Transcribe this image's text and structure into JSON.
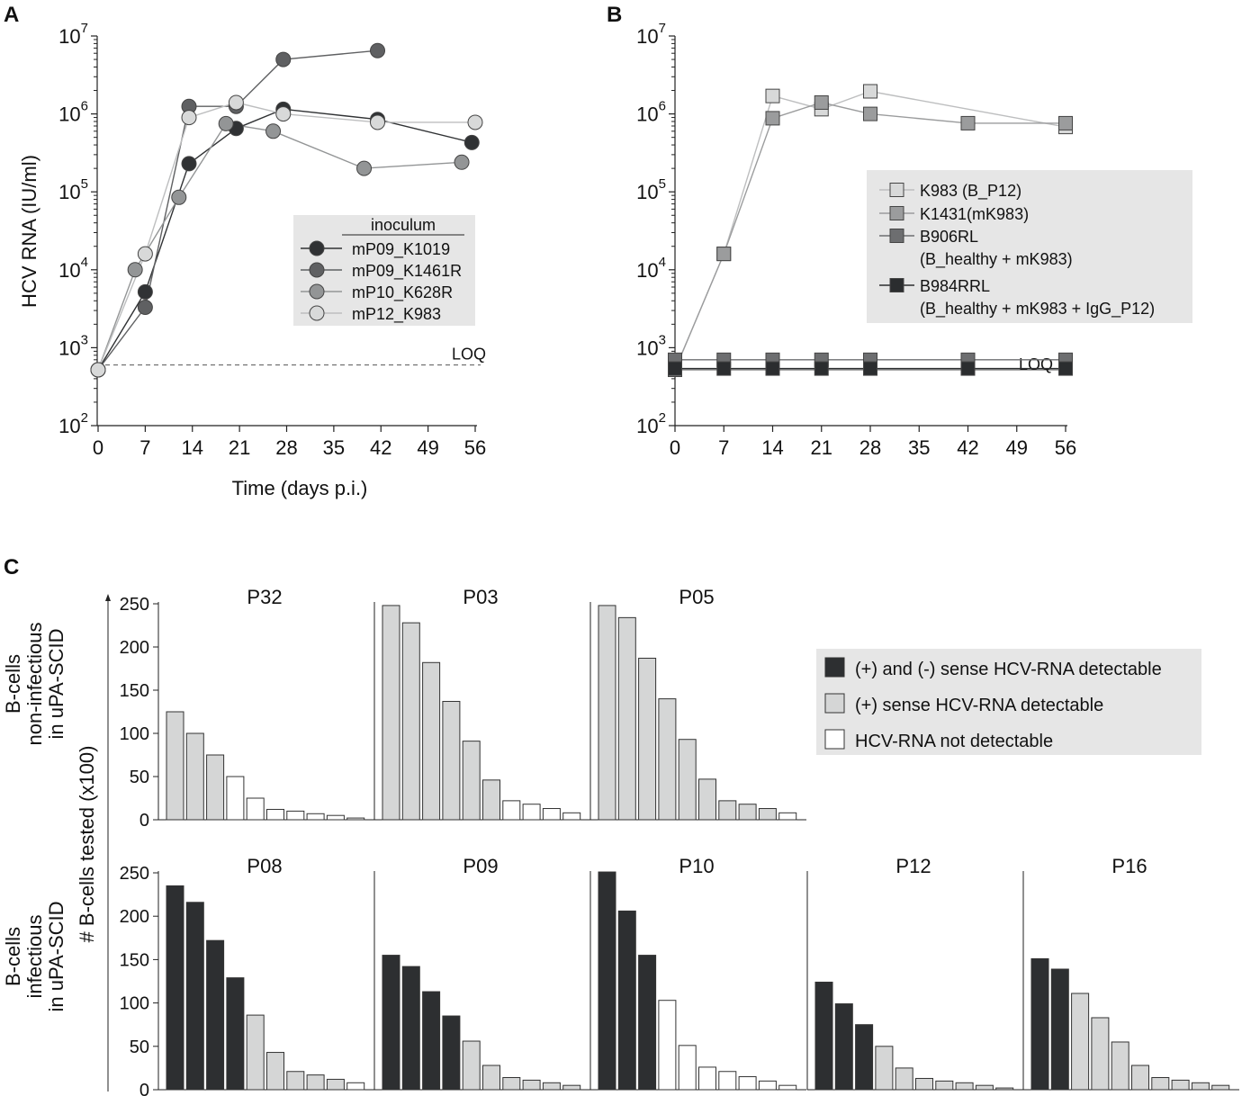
{
  "figure": {
    "panels": {
      "A": {
        "letter": "A"
      },
      "B": {
        "letter": "B"
      },
      "C": {
        "letter": "C"
      }
    }
  },
  "chart_data": [
    {
      "id": "A",
      "type": "line",
      "yscale": "log",
      "ylim": [
        100,
        10000000
      ],
      "xlim": [
        0,
        56
      ],
      "xticks": [
        0,
        7,
        14,
        21,
        28,
        35,
        42,
        49,
        56
      ],
      "ytick_exponents": [
        2,
        3,
        4,
        5,
        6,
        7
      ],
      "ylabel": "HCV RNA (IU/ml)",
      "xlabel": "Time (days p.i.)",
      "loq": {
        "value": 600,
        "label": "LOQ"
      },
      "legend_title": "inoculum",
      "series": [
        {
          "name": "mP09_K1019",
          "color": "#303234",
          "marker": "circle",
          "points": [
            [
              0,
              520
            ],
            [
              7,
              5200
            ],
            [
              13.5,
              230000
            ],
            [
              20.5,
              650000
            ],
            [
              27.5,
              1150000
            ],
            [
              41.5,
              850000
            ],
            [
              55.5,
              430000
            ]
          ]
        },
        {
          "name": "mP09_K1461R",
          "color": "#5f6062",
          "marker": "circle",
          "points": [
            [
              0,
              520
            ],
            [
              7,
              3300
            ],
            [
              13.5,
              1250000
            ],
            [
              20.5,
              1250000
            ],
            [
              27.5,
              5000000
            ],
            [
              41.5,
              6500000
            ]
          ]
        },
        {
          "name": "mP10_K628R",
          "color": "#939596",
          "marker": "circle",
          "points": [
            [
              0,
              520
            ],
            [
              5.5,
              10000
            ],
            [
              12,
              85000
            ],
            [
              19,
              750000
            ],
            [
              26,
              600000
            ],
            [
              39.5,
              200000
            ],
            [
              54,
              240000
            ]
          ]
        },
        {
          "name": "mP12_K983",
          "color": "#d8d9d9",
          "marker": "circle",
          "points": [
            [
              0,
              520
            ],
            [
              7,
              16000
            ],
            [
              13.5,
              900000
            ],
            [
              20.5,
              1400000
            ],
            [
              27.5,
              1000000
            ],
            [
              41.5,
              780000
            ],
            [
              56,
              780000
            ]
          ]
        }
      ]
    },
    {
      "id": "B",
      "type": "line",
      "yscale": "log",
      "ylim": [
        100,
        10000000
      ],
      "xlim": [
        0,
        56
      ],
      "xticks": [
        0,
        7,
        14,
        21,
        28,
        35,
        42,
        49,
        56
      ],
      "ytick_exponents": [
        2,
        3,
        4,
        5,
        6,
        7
      ],
      "loq": {
        "value": 520,
        "label": "LOQ"
      },
      "series": [
        {
          "name": "K983 (B_P12)",
          "name2": "",
          "color": "#d8d9d9",
          "marker": "square",
          "points": [
            [
              0,
              520
            ],
            [
              7,
              16000
            ],
            [
              14,
              1700000
            ],
            [
              21,
              1150000
            ],
            [
              28,
              1950000
            ],
            [
              56,
              680000
            ]
          ]
        },
        {
          "name": "K1431(mK983)",
          "name2": "",
          "color": "#9b9c9d",
          "marker": "square",
          "points": [
            [
              0,
              520
            ],
            [
              7,
              16000
            ],
            [
              14,
              880000
            ],
            [
              21,
              1400000
            ],
            [
              28,
              1000000
            ],
            [
              42,
              760000
            ],
            [
              56,
              760000
            ]
          ]
        },
        {
          "name": "B906RL",
          "name2": "(B_healthy + mK983)",
          "color": "#6d6e70",
          "marker": "square",
          "points": [
            [
              0,
              700
            ],
            [
              7,
              700
            ],
            [
              14,
              700
            ],
            [
              21,
              700
            ],
            [
              28,
              700
            ],
            [
              42,
              700
            ],
            [
              56,
              700
            ]
          ]
        },
        {
          "name": "B984RRL",
          "name2": "(B_healthy + mK983 + IgG_P12)",
          "color": "#2b2d2f",
          "marker": "square",
          "points": [
            [
              0,
              540
            ],
            [
              7,
              540
            ],
            [
              14,
              540
            ],
            [
              21,
              540
            ],
            [
              28,
              540
            ],
            [
              42,
              540
            ],
            [
              56,
              540
            ]
          ]
        }
      ]
    },
    {
      "id": "C",
      "type": "bar",
      "ylabel": "# B-cells tested (x100)",
      "ylim": [
        0,
        250
      ],
      "yticks": [
        0,
        50,
        100,
        150,
        200,
        250
      ],
      "row_labels": [
        {
          "l1": "B-cells",
          "l2": "non-infectious",
          "l3": "in uPA-SCID"
        },
        {
          "l1": "B-cells",
          "l2": "infectious",
          "l3": "in uPA-SCID"
        }
      ],
      "legend": [
        {
          "key": "both",
          "label": "(+) and (-) sense HCV-RNA detectable",
          "color": "#2d2f31"
        },
        {
          "key": "plus",
          "label": "(+) sense HCV-RNA detectable",
          "color": "#d5d6d6"
        },
        {
          "key": "none",
          "label": "HCV-RNA not detectable",
          "color": "#ffffff"
        }
      ],
      "colors": {
        "both": "#2d2f31",
        "plus": "#d5d6d6",
        "none": "#ffffff"
      },
      "panels": [
        {
          "name": "P32",
          "row": 0,
          "col": 0,
          "values": [
            125,
            100,
            75,
            50,
            25,
            12,
            10,
            7,
            5,
            2
          ],
          "classes": [
            "plus",
            "plus",
            "plus",
            "none",
            "none",
            "none",
            "none",
            "none",
            "none",
            "none"
          ]
        },
        {
          "name": "P03",
          "row": 0,
          "col": 1,
          "values": [
            248,
            228,
            182,
            137,
            91,
            46,
            22,
            18,
            13,
            8
          ],
          "classes": [
            "plus",
            "plus",
            "plus",
            "plus",
            "plus",
            "plus",
            "none",
            "none",
            "none",
            "none"
          ]
        },
        {
          "name": "P05",
          "row": 0,
          "col": 2,
          "values": [
            248,
            234,
            187,
            140,
            93,
            47,
            22,
            18,
            13,
            8
          ],
          "classes": [
            "plus",
            "plus",
            "plus",
            "plus",
            "plus",
            "plus",
            "plus",
            "plus",
            "plus",
            "none"
          ]
        },
        {
          "name": "P08",
          "row": 1,
          "col": 0,
          "values": [
            235,
            216,
            172,
            129,
            86,
            43,
            21,
            17,
            12,
            8
          ],
          "classes": [
            "both",
            "both",
            "both",
            "both",
            "plus",
            "plus",
            "plus",
            "plus",
            "plus",
            "none"
          ]
        },
        {
          "name": "P09",
          "row": 1,
          "col": 1,
          "values": [
            155,
            142,
            113,
            85,
            56,
            28,
            14,
            11,
            8,
            5
          ],
          "classes": [
            "both",
            "both",
            "both",
            "both",
            "plus",
            "plus",
            "plus",
            "plus",
            "plus",
            "plus"
          ]
        },
        {
          "name": "P10",
          "row": 1,
          "col": 2,
          "values": [
            251,
            206,
            155,
            103,
            51,
            26,
            21,
            15,
            10,
            5
          ],
          "classes": [
            "both",
            "both",
            "both",
            "none",
            "none",
            "none",
            "none",
            "none",
            "none",
            "none"
          ]
        },
        {
          "name": "P12",
          "row": 1,
          "col": 3,
          "values": [
            124,
            99,
            75,
            50,
            25,
            13,
            10,
            8,
            5,
            2
          ],
          "classes": [
            "both",
            "both",
            "both",
            "plus",
            "plus",
            "plus",
            "plus",
            "plus",
            "plus",
            "plus"
          ]
        },
        {
          "name": "P16",
          "row": 1,
          "col": 4,
          "values": [
            151,
            139,
            111,
            83,
            55,
            28,
            14,
            11,
            8,
            5
          ],
          "classes": [
            "both",
            "both",
            "plus",
            "plus",
            "plus",
            "plus",
            "plus",
            "plus",
            "plus",
            "plus"
          ]
        }
      ]
    }
  ]
}
